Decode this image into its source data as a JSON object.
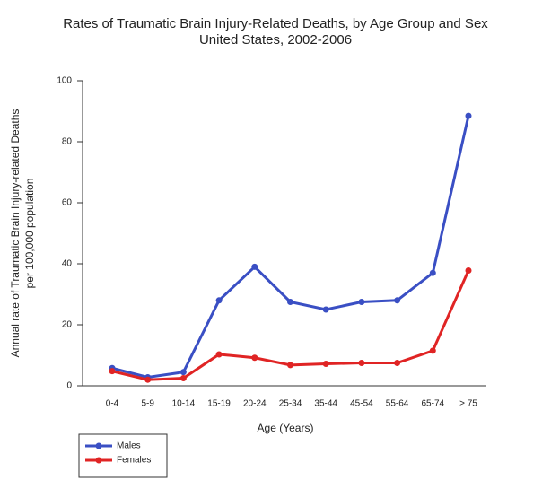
{
  "chart_data": {
    "type": "line",
    "title": "Rates of Traumatic Brain Injury-Related Deaths, by Age Group and Sex",
    "subtitle": "United States, 2002-2006",
    "xlabel": "Age (Years)",
    "ylabel": [
      "Annual rate of Traumatic Brain Injury-related Deaths",
      "per 100,000 population"
    ],
    "categories": [
      "0-4",
      "5-9",
      "10-14",
      "15-19",
      "20-24",
      "25-34",
      "35-44",
      "45-54",
      "55-64",
      "65-74",
      "> 75"
    ],
    "series": [
      {
        "name": "Males",
        "color": "#3a4fc4",
        "values": [
          5.8,
          2.8,
          4.5,
          28,
          39,
          27.5,
          25,
          27.5,
          28,
          37,
          88.5
        ]
      },
      {
        "name": "Females",
        "color": "#e02424",
        "values": [
          4.8,
          2,
          2.5,
          10.3,
          9.2,
          6.8,
          7.2,
          7.5,
          7.5,
          11.5,
          37.8
        ]
      }
    ],
    "ylim": [
      0,
      100
    ],
    "yticks": [
      0,
      20,
      40,
      60,
      80,
      100
    ],
    "grid": false
  }
}
